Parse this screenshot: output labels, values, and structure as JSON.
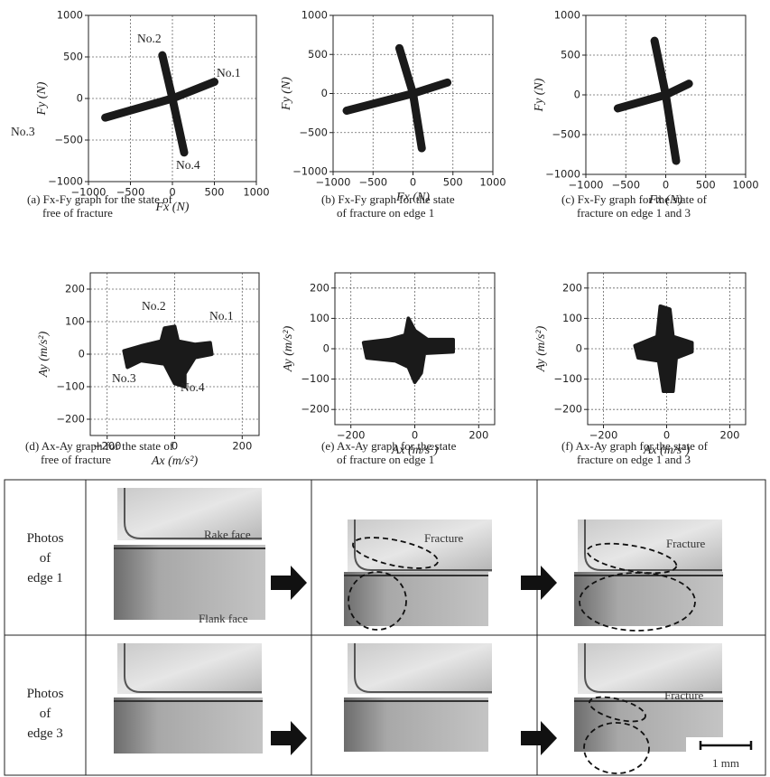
{
  "chart_data": [
    {
      "type": "scatter",
      "caption": [
        "(a)  Fx-Fy graph for the state of",
        "free of fracture"
      ],
      "xlabel": "Fx (N)",
      "ylabel": "Fy (N)",
      "xlim": [
        -1000,
        1000
      ],
      "ylim": [
        -1000,
        1000
      ],
      "xticks": [
        {
          "value": -1000,
          "label": "−1000"
        },
        {
          "value": -500,
          "label": "−500"
        },
        0,
        500,
        1000
      ],
      "yticks": [
        {
          "value": -1000,
          "label": "−1000"
        },
        {
          "value": -500,
          "label": "−500"
        },
        0,
        500,
        1000
      ],
      "grid": true,
      "color": "#1a1a1a",
      "arms": [
        {
          "x": [
            -800,
            0,
            500
          ],
          "y": [
            -230,
            0,
            200
          ]
        },
        {
          "x": [
            -120,
            0,
            140
          ],
          "y": [
            520,
            0,
            -650
          ]
        }
      ],
      "annotations": [
        "No.2",
        "No.1",
        "No.3",
        "No.4"
      ]
    },
    {
      "type": "scatter",
      "caption": [
        "(b)  Fx-Fy graph for the state",
        "of fracture on edge 1"
      ],
      "xlabel": "Fx (N)",
      "ylabel": "Fy (N)",
      "xlim": [
        -1000,
        1000
      ],
      "ylim": [
        -1000,
        1000
      ],
      "xticks": [
        {
          "value": -1000,
          "label": "−1000"
        },
        {
          "value": -500,
          "label": "−500"
        },
        0,
        500,
        1000
      ],
      "yticks": [
        {
          "value": -1000,
          "label": "−1000"
        },
        {
          "value": -500,
          "label": "−500"
        },
        0,
        500,
        1000
      ],
      "grid": true,
      "color": "#1a1a1a",
      "arms": [
        {
          "x": [
            -830,
            0,
            430
          ],
          "y": [
            -220,
            0,
            140
          ]
        },
        {
          "x": [
            -170,
            0,
            110
          ],
          "y": [
            580,
            0,
            -700
          ]
        }
      ]
    },
    {
      "type": "scatter",
      "caption": [
        "(c)  Fx-Fy graph for the state of",
        "fracture on edge 1 and 3"
      ],
      "xlabel": "Fx (N)",
      "ylabel": "Fy (N)",
      "xlim": [
        -1000,
        1000
      ],
      "ylim": [
        -1000,
        1000
      ],
      "xticks": [
        {
          "value": -1000,
          "label": "−1000"
        },
        {
          "value": -500,
          "label": "−500"
        },
        0,
        500,
        1000
      ],
      "yticks": [
        {
          "value": -1000,
          "label": "−1000"
        },
        {
          "value": -500,
          "label": "−500"
        },
        0,
        500,
        1000
      ],
      "grid": true,
      "color": "#1a1a1a",
      "arms": [
        {
          "x": [
            -600,
            0,
            290
          ],
          "y": [
            -170,
            0,
            140
          ]
        },
        {
          "x": [
            -140,
            0,
            130
          ],
          "y": [
            680,
            0,
            -830
          ]
        }
      ]
    },
    {
      "type": "scatter",
      "caption": [
        "(d)  Ax-Ay  graph for the state of",
        "free of fracture"
      ],
      "xlabel": "Ax  (m/s²)",
      "ylabel": "Ay  (m/s²)",
      "xlim": [
        -250,
        250
      ],
      "ylim": [
        -250,
        250
      ],
      "xticks": [
        {
          "value": -200,
          "label": "−200"
        },
        0,
        200
      ],
      "yticks": [
        {
          "value": -200,
          "label": "−200"
        },
        {
          "value": -100,
          "label": "−100"
        },
        0,
        100,
        200
      ],
      "grid": true,
      "color": "#1a1a1a",
      "clouds": [
        {
          "x": [
            -150,
            -100,
            -40,
            -30,
            0,
            10,
            60,
            105,
            110,
            60,
            30,
            30,
            0,
            -30,
            -100,
            -140
          ],
          "y": [
            10,
            25,
            40,
            80,
            85,
            40,
            30,
            35,
            0,
            -10,
            -60,
            -100,
            -90,
            -30,
            -20,
            -40
          ]
        }
      ],
      "annotations": [
        "No.2",
        "No.1",
        "No.3",
        "No.4"
      ]
    },
    {
      "type": "scatter",
      "caption": [
        "(e)  Ax-Ay graph for the state",
        "of fracture on edge 1"
      ],
      "xlabel": "Ax  (m/s²)",
      "ylabel": "Ay  (m/s²)",
      "xlim": [
        -250,
        250
      ],
      "ylim": [
        -250,
        250
      ],
      "xticks": [
        {
          "value": -200,
          "label": "−200"
        },
        0,
        200
      ],
      "yticks": [
        {
          "value": -200,
          "label": "−200"
        },
        {
          "value": -100,
          "label": "−100"
        },
        0,
        100,
        200
      ],
      "grid": true,
      "color": "#1a1a1a",
      "clouds": [
        {
          "x": [
            -160,
            -80,
            -30,
            -20,
            0,
            40,
            120,
            120,
            30,
            20,
            0,
            -20,
            -60,
            -150
          ],
          "y": [
            20,
            30,
            45,
            100,
            60,
            30,
            30,
            -10,
            -15,
            -80,
            -110,
            -60,
            -40,
            -30
          ]
        }
      ]
    },
    {
      "type": "scatter",
      "caption": [
        "(f)  Ax-Ay graph for the state of",
        "fracture on edge 1 and 3"
      ],
      "xlabel": "Ax  (m/s²)",
      "ylabel": "Ay  (m/s²)",
      "xlim": [
        -250,
        250
      ],
      "ylim": [
        -250,
        250
      ],
      "xticks": [
        {
          "value": -200,
          "label": "−200"
        },
        0,
        200
      ],
      "yticks": [
        {
          "value": -200,
          "label": "−200"
        },
        {
          "value": -100,
          "label": "−100"
        },
        0,
        100,
        200
      ],
      "grid": true,
      "color": "#1a1a1a",
      "clouds": [
        {
          "x": [
            -100,
            -30,
            -20,
            10,
            20,
            80,
            80,
            30,
            20,
            -10,
            -25,
            -90
          ],
          "y": [
            10,
            40,
            140,
            130,
            40,
            20,
            -10,
            -30,
            -140,
            -140,
            -40,
            -30
          ]
        }
      ]
    }
  ],
  "photo_table": {
    "rows": [
      {
        "header": [
          "Photos",
          "of",
          "edge 1"
        ]
      },
      {
        "header": [
          "Photos",
          "of",
          "edge 3"
        ]
      }
    ],
    "rake_face": "Rake face",
    "flank_face": "Flank face",
    "fracture_labels": [
      "Fracture",
      "Fracture",
      "Fracture"
    ],
    "scale_bar": "1 mm"
  }
}
